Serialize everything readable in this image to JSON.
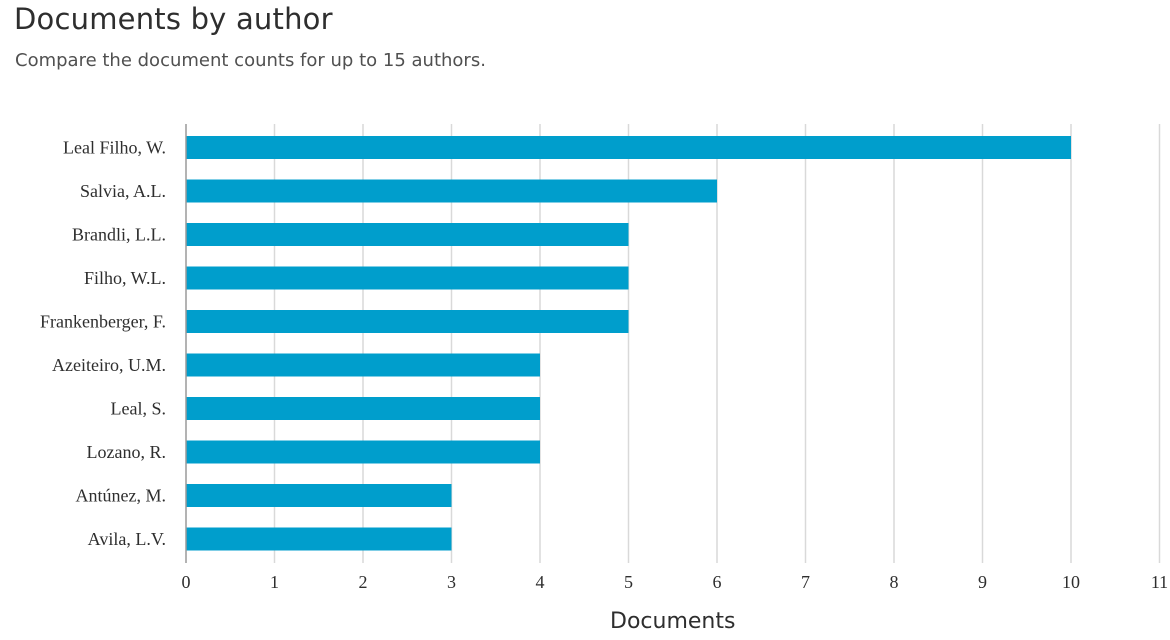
{
  "header": {
    "title": "Documents by author",
    "subtitle": "Compare the document counts for up to 15 authors."
  },
  "colors": {
    "bar": "#009ecc",
    "grid": "#d9d9d9",
    "axis": "#9a9a9a"
  },
  "chart_data": {
    "type": "bar",
    "orientation": "horizontal",
    "title": "Documents by author",
    "subtitle": "Compare the document counts for up to 15 authors.",
    "xlabel": "Documents",
    "ylabel": "",
    "categories": [
      "Leal Filho, W.",
      "Salvia, A.L.",
      "Brandli, L.L.",
      "Filho, W.L.",
      "Frankenberger, F.",
      "Azeiteiro, U.M.",
      "Leal, S.",
      "Lozano, R.",
      "Antúnez, M.",
      "Avila, L.V."
    ],
    "values": [
      10,
      6,
      5,
      5,
      5,
      4,
      4,
      4,
      3,
      3
    ],
    "xlim": [
      0,
      11
    ],
    "xticks": [
      0,
      1,
      2,
      3,
      4,
      5,
      6,
      7,
      8,
      9,
      10,
      11
    ],
    "grid": "vertical"
  }
}
